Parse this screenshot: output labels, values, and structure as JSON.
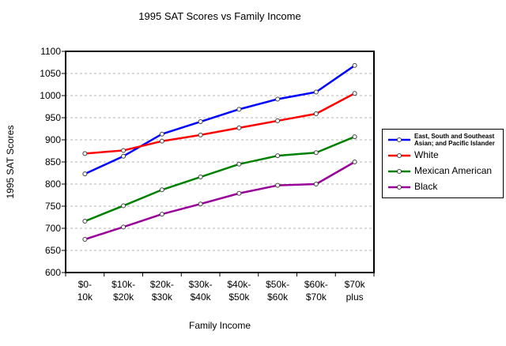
{
  "chart_data": {
    "type": "line",
    "title": "1995 SAT Scores vs Family Income",
    "xlabel": "Family Income",
    "ylabel": "1995 SAT Scores",
    "ylim": [
      600,
      1100
    ],
    "ytick_step": 50,
    "grid": true,
    "legend_position": "right",
    "background_color": "#ffffff",
    "gridline_color": "#b3b3b3",
    "axis_color": "#000000",
    "marker_fill": "#ffffff",
    "marker_stroke": "#404040",
    "categories": [
      "$0-\n10k",
      "$10k-\n$20k",
      "$20k-\n$30k",
      "$30k-\n$40k",
      "$40k-\n$50k",
      "$50k-\n$60k",
      "$60k-\n$70k",
      "$70k\nplus"
    ],
    "series": [
      {
        "name": "East, South and Southeast Asian; and Pacific Islander",
        "color": "#0000ff",
        "values": [
          823,
          863,
          913,
          941,
          969,
          992,
          1008,
          1068
        ]
      },
      {
        "name": "White",
        "color": "#ff0000",
        "values": [
          869,
          876,
          897,
          911,
          927,
          943,
          959,
          1005
        ]
      },
      {
        "name": "Mexican American",
        "color": "#008000",
        "values": [
          716,
          751,
          787,
          816,
          845,
          864,
          871,
          907
        ]
      },
      {
        "name": "Black",
        "color": "#990099",
        "values": [
          675,
          703,
          732,
          755,
          779,
          797,
          800,
          850
        ]
      }
    ]
  }
}
